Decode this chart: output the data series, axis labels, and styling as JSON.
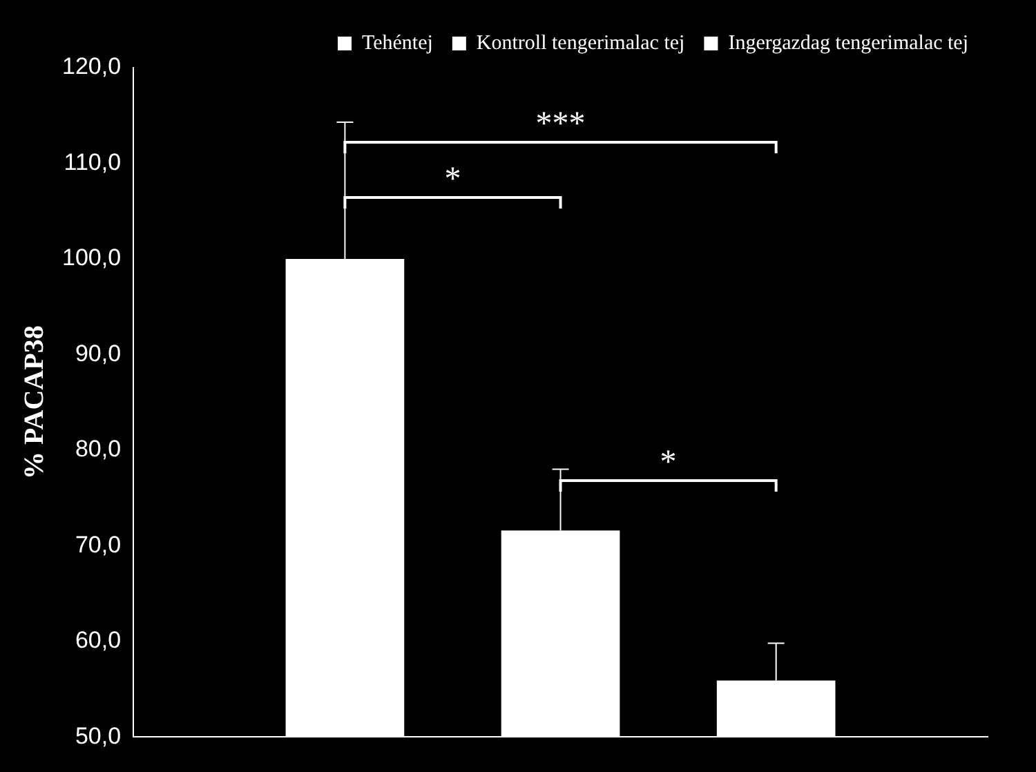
{
  "chart_data": {
    "type": "bar",
    "ylabel": "% PACAP38",
    "categories": [
      null
    ],
    "series": [
      {
        "name": "Tehéntej",
        "color": "#ffffff",
        "values": [
          100.0
        ],
        "errors": [
          [
            100.0,
            114.3
          ]
        ]
      },
      {
        "name": "Kontroll tengerimalac tej",
        "color": "#ffffff",
        "values": [
          71.6
        ],
        "errors": [
          [
            71.6,
            78.0
          ]
        ]
      },
      {
        "name": "Ingergazdag tengerimalac tej",
        "color": "#ffffff",
        "values": [
          55.9
        ],
        "errors": [
          [
            55.9,
            59.8
          ]
        ]
      }
    ],
    "ylim": [
      50,
      120
    ],
    "yticks": [
      {
        "value": 50,
        "label": "50,0"
      },
      {
        "value": 60,
        "label": "60,0"
      },
      {
        "value": 70,
        "label": "70,0"
      },
      {
        "value": 80,
        "label": "80,0"
      },
      {
        "value": 90,
        "label": "90,0"
      },
      {
        "value": 100,
        "label": "100,0"
      },
      {
        "value": 110,
        "label": "110,0"
      },
      {
        "value": 120,
        "label": "120,0"
      }
    ],
    "legend": "top right",
    "grid": false,
    "annotations": [
      "*",
      "***",
      "*"
    ]
  }
}
